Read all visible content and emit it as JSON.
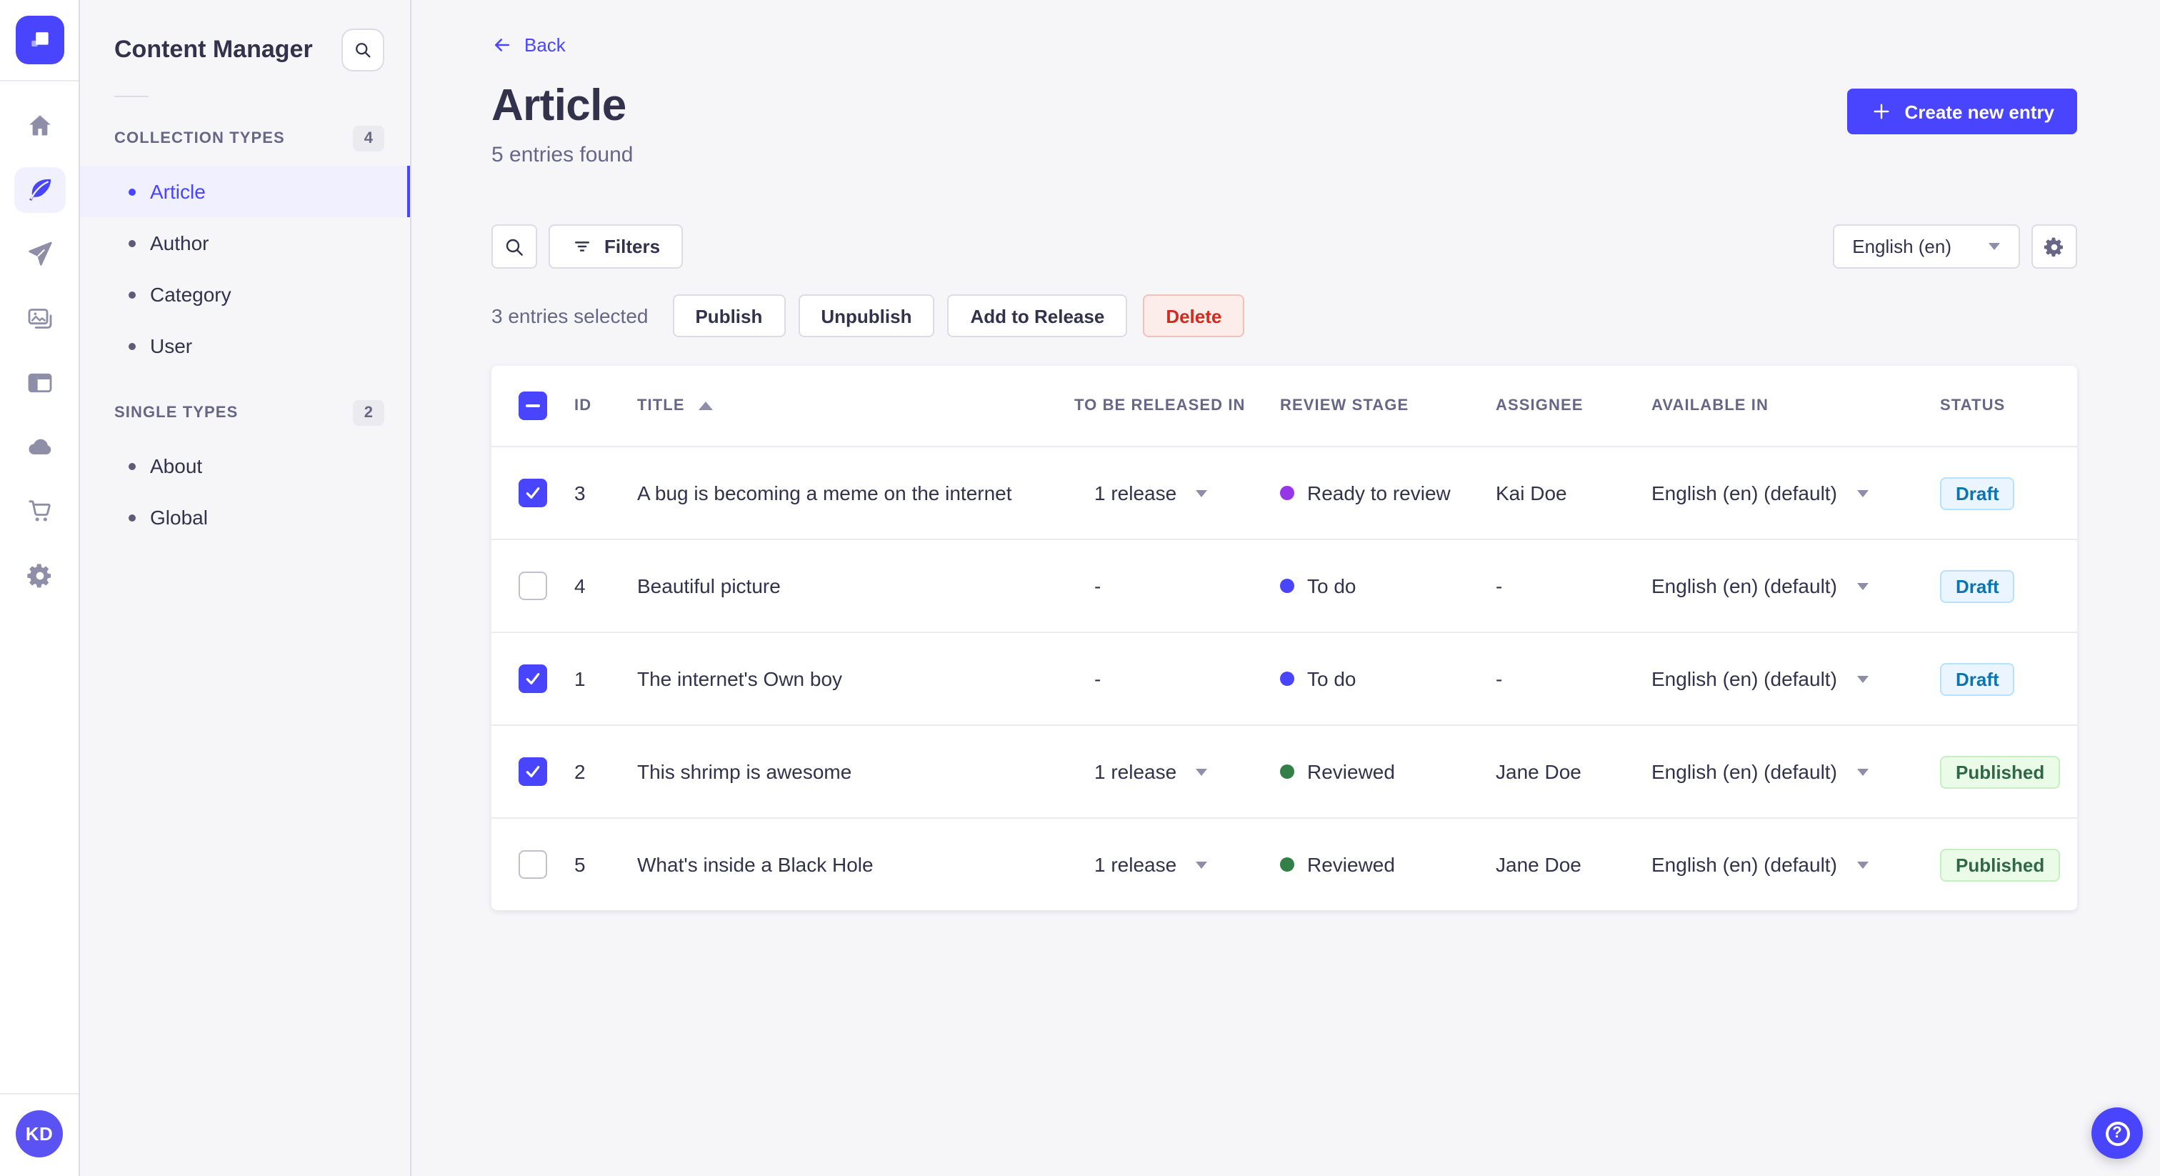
{
  "nav": {
    "icons": [
      "home-icon",
      "content-manager-feather-icon",
      "releases-paper-plane-icon",
      "media-library-pictures-icon",
      "content-type-builder-layout-icon",
      "cloud-icon",
      "marketplace-cart-icon",
      "settings-gear-icon"
    ]
  },
  "sidebar": {
    "title": "Content Manager",
    "sections": [
      {
        "label": "COLLECTION TYPES",
        "count": "4",
        "items": [
          "Article",
          "Author",
          "Category",
          "User"
        ],
        "active_item": "Article"
      },
      {
        "label": "SINGLE TYPES",
        "count": "2",
        "items": [
          "About",
          "Global"
        ]
      }
    ]
  },
  "header": {
    "back_label": "Back",
    "title": "Article",
    "subtitle": "5 entries found",
    "create_button": "Create new entry"
  },
  "toolbar": {
    "filters_label": "Filters",
    "locale": "English (en)"
  },
  "selection": {
    "text": "3 entries selected",
    "publish": "Publish",
    "unpublish": "Unpublish",
    "add_to_release": "Add to Release",
    "delete": "Delete"
  },
  "table": {
    "select_all_state": "indeterminate",
    "columns": [
      "ID",
      "TITLE",
      "TO BE RELEASED IN",
      "REVIEW STAGE",
      "ASSIGNEE",
      "AVAILABLE IN",
      "STATUS"
    ],
    "sort_column": "TITLE",
    "sort_direction": "asc",
    "rows": [
      {
        "checked": true,
        "id": "3",
        "title": "A bug is becoming a meme on the internet",
        "released": "1 release",
        "stage": "Ready to review",
        "stage_color": "#9736e8",
        "assignee": "Kai Doe",
        "available": "English (en) (default)",
        "status": "Draft",
        "status_type": "draft"
      },
      {
        "checked": false,
        "id": "4",
        "title": "Beautiful picture",
        "released": "-",
        "stage": "To do",
        "stage_color": "#4945ff",
        "assignee": "-",
        "available": "English (en) (default)",
        "status": "Draft",
        "status_type": "draft"
      },
      {
        "checked": true,
        "id": "1",
        "title": "The internet's Own boy",
        "released": "-",
        "stage": "To do",
        "stage_color": "#4945ff",
        "assignee": "-",
        "available": "English (en) (default)",
        "status": "Draft",
        "status_type": "draft"
      },
      {
        "checked": true,
        "id": "2",
        "title": "This shrimp is awesome",
        "released": "1 release",
        "stage": "Reviewed",
        "stage_color": "#328048",
        "assignee": "Jane Doe",
        "available": "English (en) (default)",
        "status": "Published",
        "status_type": "published"
      },
      {
        "checked": false,
        "id": "5",
        "title": "What's inside a Black Hole",
        "released": "1 release",
        "stage": "Reviewed",
        "stage_color": "#328048",
        "assignee": "Jane Doe",
        "available": "English (en) (default)",
        "status": "Published",
        "status_type": "published"
      }
    ]
  },
  "user": {
    "initials": "KD"
  },
  "colors": {
    "primary": "#4945ff",
    "danger_text": "#d02b20",
    "draft_text": "#0c75af",
    "published_text": "#2f6846",
    "stage_purple": "#9736e8",
    "stage_blue": "#4945ff",
    "stage_green": "#328048"
  }
}
